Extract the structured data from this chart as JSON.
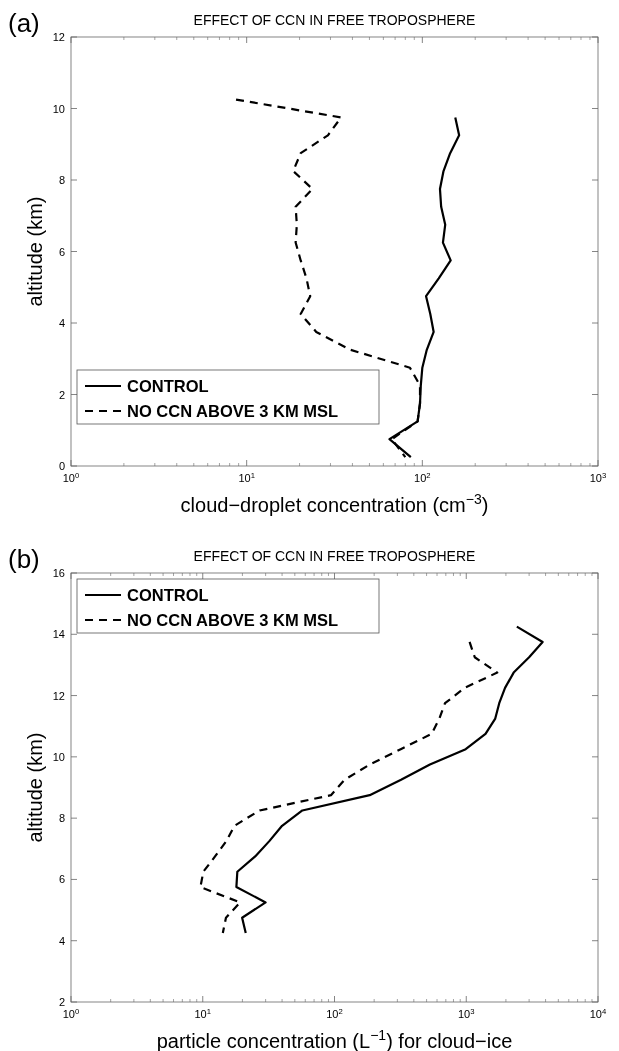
{
  "chart_data": [
    {
      "type": "line",
      "title": "EFFECT OF CCN IN FREE TROPOSPHERE",
      "xlabel": "cloud−droplet concentration (cm$^{−3}$)",
      "ylabel": "altitude (km)",
      "annotations": [
        "(a)"
      ],
      "log": "x",
      "xlim": [
        1,
        1000
      ],
      "xticks": [
        {
          "value": 1,
          "label": "10$^{0}$"
        },
        {
          "value": 10,
          "label": "10$^{1}$"
        },
        {
          "value": 100,
          "label": "10$^{2}$"
        },
        {
          "value": 1000,
          "label": "10$^{3}$"
        }
      ],
      "ylim": [
        0,
        12
      ],
      "yticks": [
        0,
        2,
        4,
        6,
        8,
        10,
        12
      ],
      "grid": false,
      "legend": "bottom left",
      "series": [
        {
          "name": "CONTROL",
          "color": "#000000",
          "line_style": "solid",
          "x": [
            154,
            162,
            144,
            132,
            126,
            128,
            135,
            131,
            145,
            124,
            105,
            111,
            116,
            106,
            100,
            98,
            97,
            94,
            65,
            86
          ],
          "values": [
            9.75,
            9.25,
            8.75,
            8.25,
            7.75,
            7.25,
            6.75,
            6.25,
            5.75,
            5.25,
            4.75,
            4.25,
            3.75,
            3.25,
            2.75,
            2.25,
            1.75,
            1.25,
            0.75,
            0.25
          ]
        },
        {
          "name": "NO CCN ABOVE 3 KM MSL",
          "color": "#000000",
          "line_style": "dashed",
          "x": [
            8.7,
            34.5,
            29,
            20.3,
            18.4,
            23.7,
            19,
            19.3,
            19,
            20.3,
            21.9,
            23,
            20.3,
            24.9,
            39,
            85,
            97,
            97,
            94,
            67,
            80
          ],
          "values": [
            10.25,
            9.75,
            9.25,
            8.75,
            8.25,
            7.75,
            7.25,
            6.75,
            6.25,
            5.75,
            5.25,
            4.75,
            4.25,
            3.75,
            3.25,
            2.75,
            2.25,
            1.75,
            1.25,
            0.75,
            0.25
          ]
        }
      ]
    },
    {
      "type": "line",
      "title": "EFFECT OF CCN IN FREE TROPOSPHERE",
      "xlabel": "particle concentration (L$^{−1}$) for cloud−ice",
      "ylabel": "altitude (km)",
      "annotations": [
        "(b)"
      ],
      "log": "x",
      "xlim": [
        1,
        10000
      ],
      "xticks": [
        {
          "value": 1,
          "label": "10$^{0}$"
        },
        {
          "value": 10,
          "label": "10$^{1}$"
        },
        {
          "value": 100,
          "label": "10$^{2}$"
        },
        {
          "value": 1000,
          "label": "10$^{3}$"
        },
        {
          "value": 10000,
          "label": "10$^{4}$"
        }
      ],
      "ylim": [
        2,
        16
      ],
      "yticks": [
        2,
        4,
        6,
        8,
        10,
        12,
        14,
        16
      ],
      "grid": false,
      "legend": "top left",
      "series": [
        {
          "name": "CONTROL",
          "color": "#000000",
          "line_style": "solid",
          "x": [
            2420,
            3800,
            3000,
            2290,
            1970,
            1780,
            1660,
            1400,
            990,
            530,
            320,
            185,
            57,
            40,
            32,
            25,
            18.3,
            18,
            30,
            19.9,
            21.2
          ],
          "values": [
            14.25,
            13.75,
            13.25,
            12.75,
            12.25,
            11.75,
            11.25,
            10.75,
            10.25,
            9.75,
            9.25,
            8.75,
            8.25,
            7.75,
            7.25,
            6.75,
            6.25,
            5.75,
            5.25,
            4.75,
            4.25
          ]
        },
        {
          "name": "NO CCN ABOVE 3 KM MSL",
          "color": "#000000",
          "line_style": "dashed",
          "x": [
            1060,
            1160,
            1720,
            970,
            690,
            625,
            546,
            318,
            185,
            119,
            94,
            27,
            17.4,
            15.1,
            12.4,
            10.1,
            9.6,
            19.2,
            15,
            14.2
          ],
          "values": [
            13.75,
            13.25,
            12.75,
            12.25,
            11.75,
            11.25,
            10.75,
            10.25,
            9.75,
            9.25,
            8.75,
            8.25,
            7.75,
            7.25,
            6.75,
            6.25,
            5.75,
            5.25,
            4.75,
            4.25
          ]
        }
      ]
    }
  ]
}
